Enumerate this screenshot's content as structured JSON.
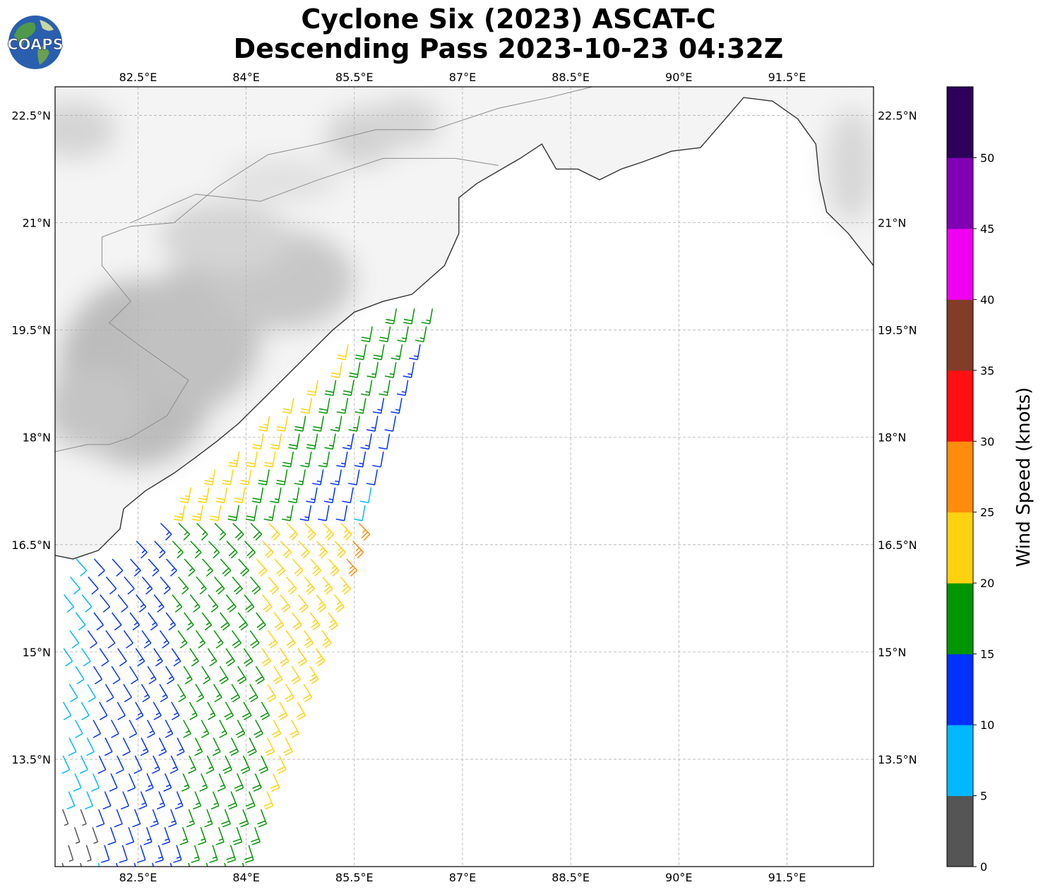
{
  "title": {
    "line1": "Cyclone Six (2023) ASCAT-C",
    "line2": "Descending Pass 2023-10-23 04:32Z"
  },
  "logo": {
    "text": "COAPS",
    "icon": "globe-icon"
  },
  "map": {
    "lon_range": [
      81.35,
      92.7
    ],
    "lat_range": [
      12.0,
      22.9
    ],
    "lon_ticks": [
      82.5,
      84,
      85.5,
      87,
      88.5,
      90,
      91.5
    ],
    "lon_tick_labels": [
      "82.5°E",
      "84°E",
      "85.5°E",
      "87°E",
      "88.5°E",
      "90°E",
      "91.5°E"
    ],
    "lat_ticks": [
      22.5,
      21,
      19.5,
      18,
      16.5,
      15,
      13.5
    ],
    "lat_tick_labels": [
      "22.5°N",
      "21°N",
      "19.5°N",
      "18°N",
      "16.5°N",
      "15°N",
      "13.5°N"
    ],
    "grid": true,
    "coastline": [
      [
        81.35,
        16.35
      ],
      [
        81.6,
        16.3
      ],
      [
        81.95,
        16.42
      ],
      [
        82.25,
        16.72
      ],
      [
        82.3,
        17.0
      ],
      [
        82.6,
        17.25
      ],
      [
        83.0,
        17.5
      ],
      [
        83.3,
        17.72
      ],
      [
        83.6,
        17.95
      ],
      [
        83.9,
        18.2
      ],
      [
        84.2,
        18.5
      ],
      [
        84.55,
        18.85
      ],
      [
        84.9,
        19.2
      ],
      [
        85.2,
        19.5
      ],
      [
        85.5,
        19.75
      ],
      [
        85.9,
        19.9
      ],
      [
        86.3,
        20.0
      ],
      [
        86.75,
        20.4
      ],
      [
        86.95,
        20.85
      ],
      [
        86.95,
        21.35
      ],
      [
        87.2,
        21.55
      ],
      [
        87.8,
        21.9
      ],
      [
        88.1,
        22.1
      ],
      [
        88.3,
        21.75
      ],
      [
        88.6,
        21.75
      ],
      [
        88.9,
        21.6
      ],
      [
        89.2,
        21.75
      ],
      [
        89.5,
        21.85
      ],
      [
        89.9,
        22.0
      ],
      [
        90.3,
        22.05
      ],
      [
        90.6,
        22.4
      ],
      [
        90.9,
        22.75
      ],
      [
        91.3,
        22.7
      ],
      [
        91.65,
        22.45
      ],
      [
        91.9,
        22.1
      ],
      [
        91.95,
        21.6
      ],
      [
        92.05,
        21.15
      ],
      [
        92.35,
        20.85
      ],
      [
        92.7,
        20.4
      ]
    ],
    "india_border": [
      [
        81.35,
        17.8
      ],
      [
        81.8,
        17.9
      ],
      [
        82.1,
        17.9
      ],
      [
        82.4,
        18.0
      ],
      [
        82.9,
        18.3
      ],
      [
        83.2,
        18.8
      ],
      [
        82.5,
        19.3
      ],
      [
        82.1,
        19.6
      ],
      [
        82.4,
        19.9
      ],
      [
        82.0,
        20.4
      ],
      [
        82.0,
        20.8
      ],
      [
        82.4,
        20.95
      ],
      [
        83.0,
        21.0
      ],
      [
        83.6,
        21.5
      ],
      [
        84.3,
        21.95
      ],
      [
        85.0,
        22.1
      ],
      [
        85.8,
        22.3
      ],
      [
        86.6,
        22.3
      ],
      [
        87.5,
        22.6
      ],
      [
        88.2,
        22.75
      ],
      [
        88.8,
        22.9
      ]
    ],
    "state_border": [
      [
        82.4,
        21.0
      ],
      [
        83.3,
        21.4
      ],
      [
        84.2,
        21.3
      ],
      [
        85.0,
        21.6
      ],
      [
        85.9,
        21.9
      ],
      [
        86.9,
        21.9
      ],
      [
        87.5,
        21.8
      ]
    ],
    "terrain": [
      {
        "lon": 82.5,
        "lat": 18.9,
        "rx": 1.1,
        "ry": 1.3,
        "dark": 0.35
      },
      {
        "lon": 83.3,
        "lat": 19.4,
        "rx": 0.9,
        "ry": 1.0,
        "dark": 0.32
      },
      {
        "lon": 84.5,
        "lat": 20.2,
        "rx": 1.0,
        "ry": 0.7,
        "dark": 0.28
      },
      {
        "lon": 83.7,
        "lat": 20.8,
        "rx": 0.9,
        "ry": 0.5,
        "dark": 0.2
      },
      {
        "lon": 81.9,
        "lat": 18.4,
        "rx": 0.7,
        "ry": 0.6,
        "dark": 0.3
      },
      {
        "lon": 85.6,
        "lat": 22.2,
        "rx": 0.5,
        "ry": 0.4,
        "dark": 0.22
      },
      {
        "lon": 86.2,
        "lat": 22.4,
        "rx": 0.5,
        "ry": 0.35,
        "dark": 0.2
      },
      {
        "lon": 81.6,
        "lat": 22.3,
        "rx": 0.6,
        "ry": 0.4,
        "dark": 0.2
      },
      {
        "lon": 92.4,
        "lat": 21.8,
        "rx": 0.35,
        "ry": 0.8,
        "dark": 0.18
      },
      {
        "lon": 84.5,
        "lat": 21.6,
        "rx": 0.8,
        "ry": 0.3,
        "dark": 0.12
      }
    ],
    "wind_swath": {
      "lat_start": 12.05,
      "lat_end": 19.85,
      "west_edge": [
        81.35,
        81.35
      ],
      "east_edge_start": 83.95,
      "east_edge_end": 86.6,
      "spacing_deg": 0.25
    }
  },
  "colorbar": {
    "label": "Wind Speed (knots)",
    "ticks": [
      0,
      5,
      10,
      15,
      20,
      25,
      30,
      35,
      40,
      45,
      50
    ],
    "tick_labels": [
      "0",
      "5",
      "10",
      "15",
      "20",
      "25",
      "30",
      "35",
      "40",
      "45",
      "50"
    ],
    "max": 55,
    "colors": [
      "#555555",
      "#00b8ff",
      "#0032ff",
      "#009600",
      "#ffd20f",
      "#ff8c0a",
      "#ff0f0f",
      "#823c28",
      "#f000f0",
      "#8200b4",
      "#2d005a"
    ]
  },
  "colors": {
    "coast": "#333333",
    "border": "#8a8a8a",
    "grid": "#b0b0b0"
  }
}
